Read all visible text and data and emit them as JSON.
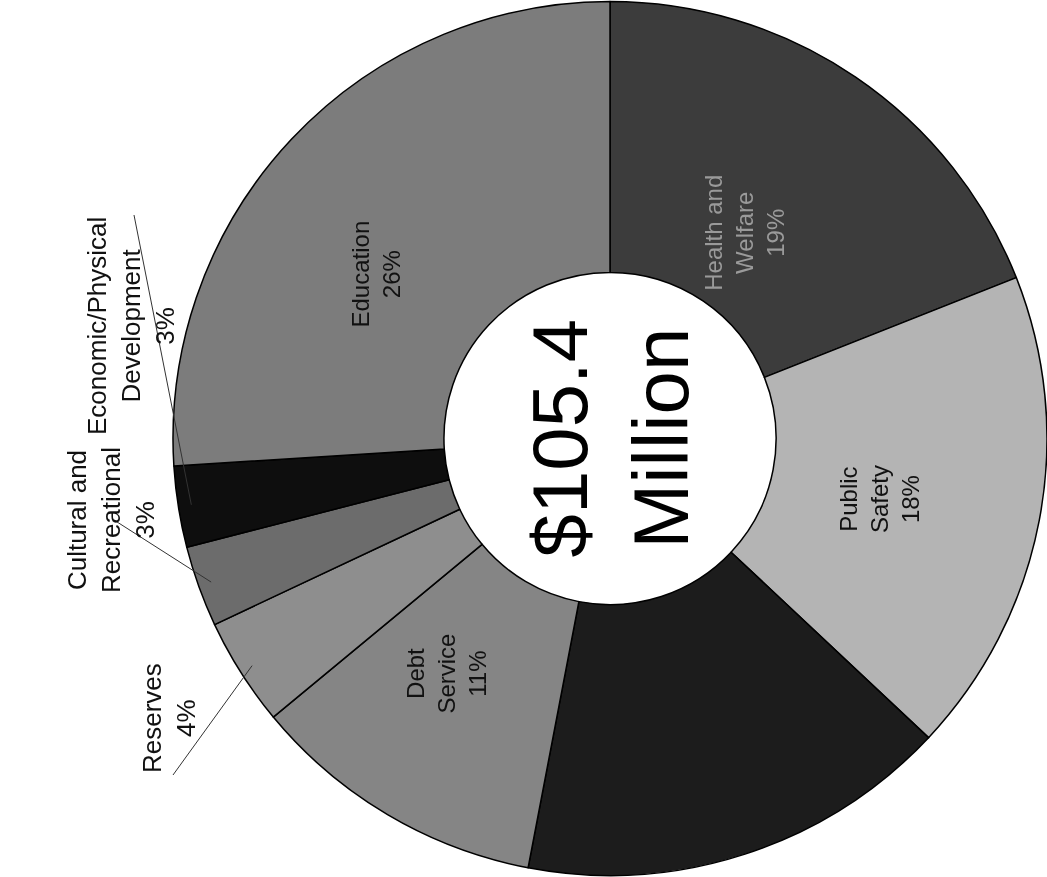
{
  "chart_data": {
    "type": "donut",
    "categories": [
      "Health and\nWelfare",
      "Public\nSafety",
      null,
      "Debt\nService",
      "Reserves",
      "Cultural and\nRecreational",
      "Economic/Physical\nDevelopment",
      "Education"
    ],
    "values": [
      19,
      18,
      16,
      11,
      4,
      3,
      3,
      26
    ],
    "value_labels": [
      "19%",
      "18%",
      null,
      "11%",
      "4%",
      "3%",
      "3%",
      "26%"
    ],
    "colors": [
      "#3c3c3c",
      "#b4b4b4",
      "#1c1c1c",
      "#858585",
      "#8e8e8e",
      "#6c6c6c",
      "#0e0e0e",
      "#7c7c7c"
    ],
    "annotations": [
      "$105.4\nMillion"
    ],
    "legend": false
  }
}
